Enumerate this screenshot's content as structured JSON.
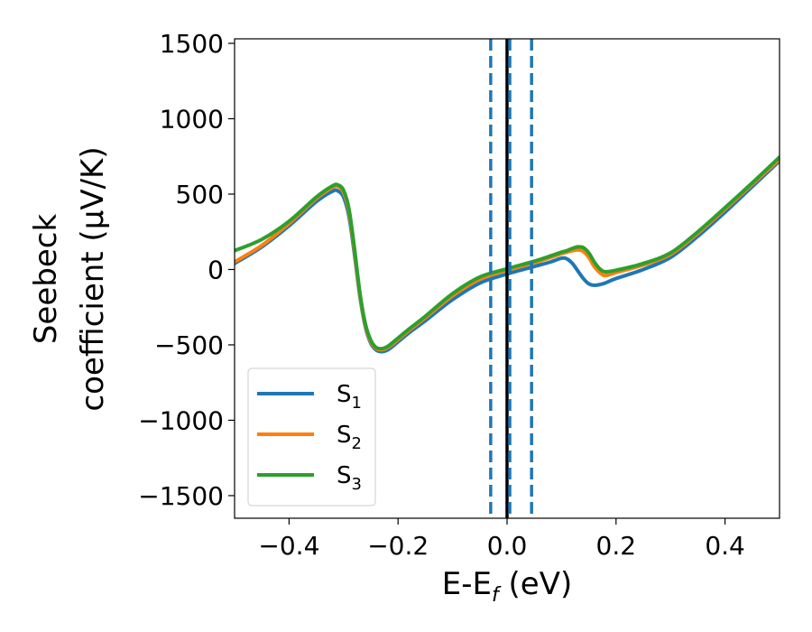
{
  "chart_data": {
    "type": "line",
    "xlabel_parts": [
      "E-E",
      "f",
      " (eV)"
    ],
    "ylabel_lines": [
      "Seebeck",
      "coefficient  (μV/K)"
    ],
    "xlim": [
      -0.5,
      0.5
    ],
    "ylim": [
      -1650,
      1530
    ],
    "x_ticks": [
      -0.4,
      -0.2,
      0.0,
      0.2,
      0.4
    ],
    "x_tick_labels": [
      "−0.4",
      "−0.2",
      "0.0",
      "0.2",
      "0.4"
    ],
    "y_ticks": [
      -1500,
      -1000,
      -500,
      0,
      500,
      1000,
      1500
    ],
    "y_tick_labels": [
      "−1500",
      "−1000",
      "−500",
      "0",
      "500",
      "1000",
      "1500"
    ],
    "grid": false,
    "legend_position": "lower-left",
    "vertical_lines": [
      {
        "x": 0.0,
        "color": "#000000",
        "style": "solid"
      },
      {
        "x": -0.03,
        "color": "#1f77b4",
        "style": "dashed"
      },
      {
        "x": 0.005,
        "color": "#1f77b4",
        "style": "dashed"
      },
      {
        "x": 0.045,
        "color": "#1f77b4",
        "style": "dashed"
      }
    ],
    "series": [
      {
        "name": "S1",
        "base": "S",
        "sub": "1",
        "color": "#1f77b4",
        "x": [
          -0.5,
          -0.45,
          -0.4,
          -0.35,
          -0.32,
          -0.31,
          -0.3,
          -0.29,
          -0.28,
          -0.27,
          -0.26,
          -0.25,
          -0.24,
          -0.23,
          -0.22,
          -0.21,
          -0.2,
          -0.18,
          -0.15,
          -0.1,
          -0.05,
          0.0,
          0.05,
          0.08,
          0.1,
          0.11,
          0.12,
          0.13,
          0.14,
          0.15,
          0.16,
          0.17,
          0.18,
          0.2,
          0.25,
          0.3,
          0.35,
          0.4,
          0.45,
          0.5
        ],
        "y": [
          40,
          150,
          290,
          450,
          520,
          520,
          480,
          350,
          100,
          -180,
          -380,
          -490,
          -535,
          -545,
          -535,
          -510,
          -480,
          -420,
          -340,
          -200,
          -90,
          -30,
          20,
          50,
          75,
          70,
          40,
          -10,
          -60,
          -95,
          -105,
          -100,
          -90,
          -60,
          0,
          80,
          220,
          380,
          550,
          720
        ]
      },
      {
        "name": "S2",
        "base": "S",
        "sub": "2",
        "color": "#ff7f0e",
        "x": [
          -0.5,
          -0.45,
          -0.4,
          -0.35,
          -0.32,
          -0.31,
          -0.3,
          -0.29,
          -0.28,
          -0.27,
          -0.26,
          -0.25,
          -0.24,
          -0.23,
          -0.22,
          -0.21,
          -0.2,
          -0.18,
          -0.15,
          -0.1,
          -0.05,
          0.0,
          0.05,
          0.08,
          0.1,
          0.11,
          0.12,
          0.13,
          0.14,
          0.15,
          0.16,
          0.17,
          0.18,
          0.2,
          0.25,
          0.3,
          0.35,
          0.4,
          0.45,
          0.5
        ],
        "y": [
          50,
          160,
          305,
          470,
          545,
          550,
          510,
          380,
          120,
          -170,
          -370,
          -480,
          -525,
          -532,
          -520,
          -495,
          -465,
          -405,
          -320,
          -175,
          -65,
          -5,
          45,
          80,
          105,
          115,
          125,
          130,
          120,
          80,
          20,
          -20,
          -40,
          -20,
          30,
          100,
          240,
          400,
          565,
          730
        ]
      },
      {
        "name": "S3",
        "base": "S",
        "sub": "3",
        "color": "#2ca02c",
        "x": [
          -0.5,
          -0.45,
          -0.4,
          -0.35,
          -0.32,
          -0.31,
          -0.3,
          -0.29,
          -0.28,
          -0.27,
          -0.26,
          -0.25,
          -0.24,
          -0.23,
          -0.22,
          -0.21,
          -0.2,
          -0.18,
          -0.15,
          -0.1,
          -0.05,
          0.0,
          0.05,
          0.08,
          0.1,
          0.11,
          0.12,
          0.13,
          0.14,
          0.15,
          0.16,
          0.17,
          0.18,
          0.2,
          0.25,
          0.3,
          0.35,
          0.4,
          0.45,
          0.5
        ],
        "y": [
          125,
          200,
          320,
          480,
          555,
          560,
          525,
          400,
          140,
          -155,
          -360,
          -470,
          -518,
          -525,
          -512,
          -485,
          -455,
          -395,
          -310,
          -160,
          -50,
          5,
          55,
          90,
          115,
          125,
          140,
          150,
          145,
          110,
          50,
          5,
          -15,
          -5,
          40,
          110,
          250,
          410,
          575,
          745
        ]
      }
    ]
  }
}
